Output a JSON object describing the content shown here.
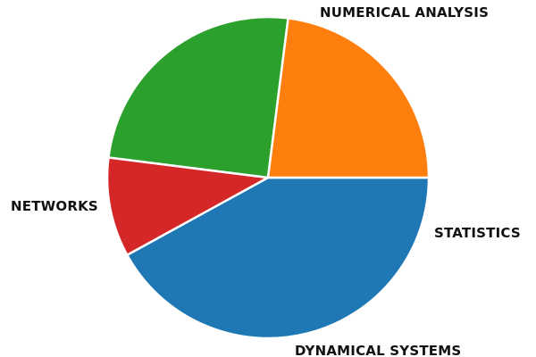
{
  "chart_data": {
    "type": "pie",
    "title": "",
    "categories": [
      "NUMERICAL ANALYSIS",
      "STATISTICS",
      "DYNAMICAL SYSTEMS",
      "NETWORKS"
    ],
    "values": [
      42,
      10,
      25,
      23
    ],
    "colors": [
      "#1f77b4",
      "#d62728",
      "#2ca02c",
      "#ff7f0e"
    ],
    "start_angle_deg": 0,
    "direction": "clockwise",
    "legend": "none"
  }
}
